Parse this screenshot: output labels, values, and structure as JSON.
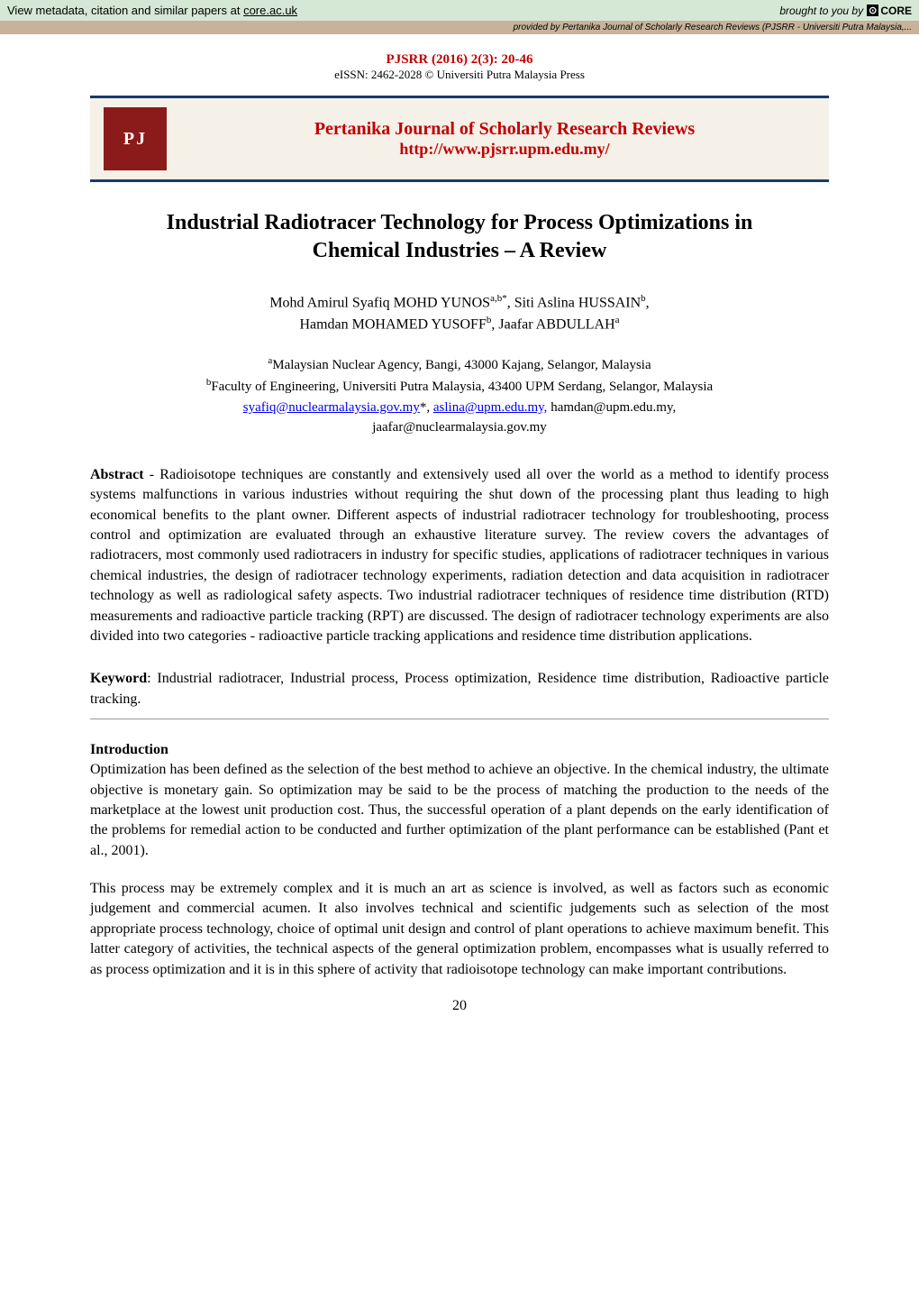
{
  "metadata_bar": {
    "left_text": "View metadata, citation and similar papers at ",
    "link_text": "core.ac.uk",
    "right_text": "brought to you by ",
    "core_label": "CORE"
  },
  "provided_bar": {
    "prefix": "provided by ",
    "text": "Pertanika Journal of Scholarly Research Reviews (PJSRR - Universiti Putra Malaysia,..."
  },
  "header": {
    "journal_ref": "PJSRR (2016) 2(3): 20-46",
    "eissn": "eISSN: 2462-2028  © Universiti Putra Malaysia Press"
  },
  "banner": {
    "logo_text": "PJ",
    "journal_title": "Pertanika Journal of Scholarly Research Reviews",
    "journal_url": "http://www.pjsrr.upm.edu.my/"
  },
  "paper": {
    "title_line1": "Industrial Radiotracer Technology for Process Optimizations in",
    "title_line2": "Chemical Industries – A Review",
    "authors_html": "Mohd Amirul Syafiq MOHD YUNOS<sup>a,b*</sup>,  Siti Aslina HUSSAIN<sup>b</sup>,<br>Hamdan MOHAMED YUSOFF<sup>b</sup>, Jaafar ABDULLAH<sup>a</sup>",
    "affil_line1": "<sup>a</sup>Malaysian Nuclear Agency, Bangi, 43000 Kajang, Selangor, Malaysia",
    "affil_line2": "<sup>b</sup>Faculty of Engineering, Universiti Putra Malaysia, 43400 UPM Serdang, Selangor, Malaysia",
    "email1": "syafiq@nuclearmalaysia.gov.my",
    "email2": "aslina@upm.edu.my,",
    "email3": "hamdan@upm.edu.my,",
    "email4": "jaafar@nuclearmalaysia.gov.my"
  },
  "abstract": {
    "label": "Abstract",
    "text": " - Radioisotope techniques are constantly and extensively used all over the world as a method to identify process systems malfunctions in various industries without requiring the shut down of the processing plant thus leading to high economical benefits to the plant owner. Different aspects of industrial radiotracer technology for troubleshooting, process control and optimization are evaluated through an exhaustive literature survey. The review covers the advantages of radiotracers, most commonly used radiotracers in industry for specific studies, applications of radiotracer techniques in various chemical industries, the design of radiotracer technology experiments, radiation detection and data acquisition in radiotracer technology as well as radiological safety aspects. Two industrial radiotracer techniques of residence time distribution (RTD) measurements and radioactive particle tracking (RPT) are discussed. The design of radiotracer technology experiments are also divided into two categories - radioactive particle tracking applications and residence time distribution applications."
  },
  "keywords": {
    "label": "Keyword",
    "text": ": Industrial radiotracer, Industrial process, Process optimization, Residence time distribution, Radioactive particle tracking."
  },
  "introduction": {
    "heading": "Introduction",
    "para1": "Optimization has been defined as the selection of the best method to achieve an objective. In the chemical industry, the ultimate objective is monetary gain. So optimization may be said to be the process of matching the production to the needs of the marketplace at the lowest unit production cost. Thus, the successful operation of a plant depends on the early identification of the problems for remedial action to be conducted and further optimization of the plant performance can be established (Pant et al., 2001).",
    "para2": "This process may be extremely complex and it is much an art as science is involved, as well as factors such as economic judgement and commercial acumen. It also involves technical and scientific judgements such as selection of the most appropriate process technology, choice of optimal unit design and control of plant operations to achieve maximum benefit. This latter category of activities, the technical aspects of the general optimization problem, encompasses what is usually referred to as process optimization and it is in this sphere of activity that radioisotope technology can make important contributions."
  },
  "page_number": "20",
  "colors": {
    "metadata_bg": "#d5e8d5",
    "provided_bg": "#c8b29a",
    "banner_border": "#1a3a6e",
    "banner_bg": "#f5f0e8",
    "logo_bg": "#8b1a1a",
    "red_text": "#c00000"
  }
}
